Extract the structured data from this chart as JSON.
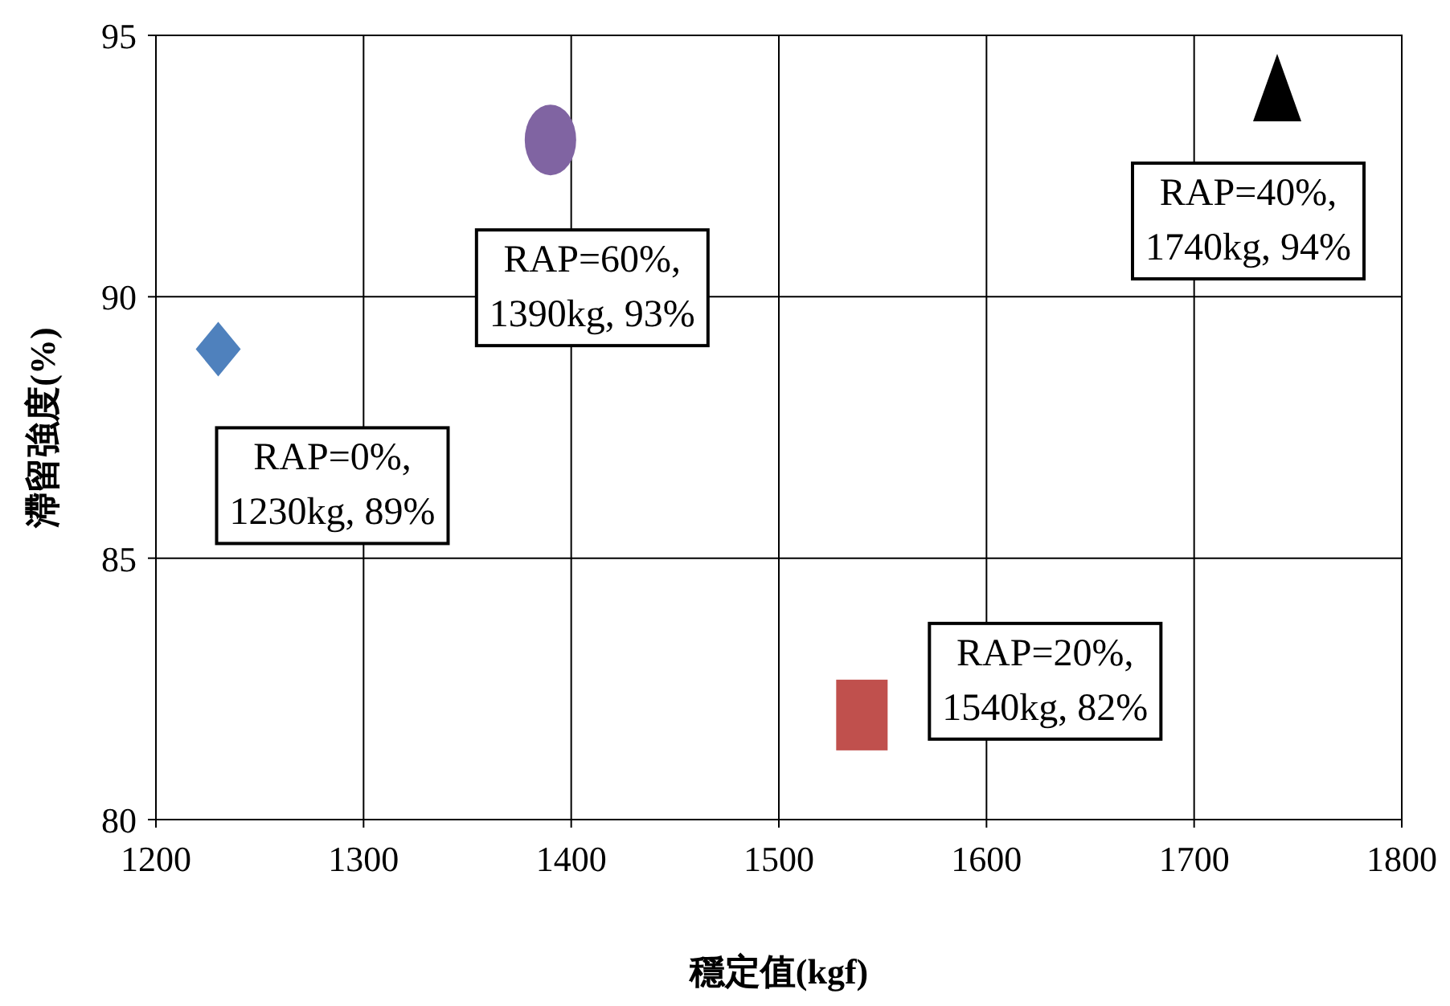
{
  "chart_data": {
    "type": "scatter",
    "xlabel": "穩定值(kgf)",
    "ylabel": "滯留強度(%)",
    "xlim": [
      1200,
      1800
    ],
    "xticks": [
      1200,
      1300,
      1400,
      1500,
      1600,
      1700,
      1800
    ],
    "ylim": [
      80,
      95
    ],
    "yticks": [
      80,
      85,
      90,
      95
    ],
    "grid": true,
    "series": [
      {
        "color": "#4f81bd",
        "marker": "diamond",
        "x": [
          1230
        ],
        "values": [
          89
        ]
      },
      {
        "color": "#c0504d",
        "marker": "square",
        "x": [
          1540
        ],
        "values": [
          82
        ]
      },
      {
        "color": "#000000",
        "marker": "triangle",
        "x": [
          1740
        ],
        "values": [
          94
        ]
      },
      {
        "color": "#8064a2",
        "marker": "circle",
        "x": [
          1390
        ],
        "values": [
          93
        ]
      }
    ],
    "annotations": [
      {
        "text": "RAP=0%,\n1230kg, 89%",
        "x": 1230,
        "y": 89
      },
      {
        "text": "RAP=20%,\n1540kg, 82%",
        "x": 1540,
        "y": 82
      },
      {
        "text": "RAP=40%,\n1740kg, 94%",
        "x": 1740,
        "y": 94
      },
      {
        "text": "RAP=60%,\n1390kg, 93%",
        "x": 1390,
        "y": 93
      }
    ]
  }
}
